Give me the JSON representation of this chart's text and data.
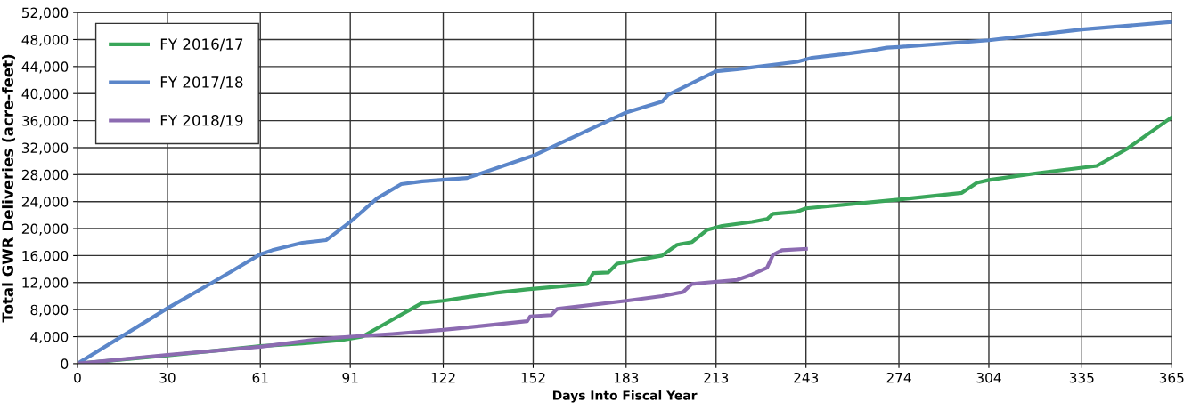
{
  "chart_data": {
    "type": "line",
    "xlabel": "Days Into Fiscal Year",
    "ylabel": "Total GWR Deliveries (acre-feet)",
    "xlim": [
      0,
      365
    ],
    "xticks": [
      0,
      30,
      61,
      91,
      122,
      152,
      183,
      213,
      243,
      274,
      304,
      335,
      365
    ],
    "ylim": [
      0,
      52000
    ],
    "yticks": [
      {
        "value": 0,
        "label": "0"
      },
      {
        "value": 4000,
        "label": "4,000"
      },
      {
        "value": 8000,
        "label": "8,000"
      },
      {
        "value": 12000,
        "label": "12,000"
      },
      {
        "value": 16000,
        "label": "16,000"
      },
      {
        "value": 20000,
        "label": "20,000"
      },
      {
        "value": 24000,
        "label": "24,000"
      },
      {
        "value": 28000,
        "label": "28,000"
      },
      {
        "value": 32000,
        "label": "32,000"
      },
      {
        "value": 36000,
        "label": "36,000"
      },
      {
        "value": 40000,
        "label": "40,000"
      },
      {
        "value": 44000,
        "label": "44,000"
      },
      {
        "value": 48000,
        "label": "48,000"
      },
      {
        "value": 52000,
        "label": "52,000"
      }
    ],
    "grid": true,
    "legend": "top left",
    "marker": "none",
    "line_style": "solid",
    "series": [
      {
        "name": "FY 2016/17",
        "color": "#3aa65a",
        "x": [
          0,
          30,
          61,
          75,
          88,
          95,
          105,
          111,
          115,
          122,
          140,
          150,
          170,
          172,
          177,
          180,
          185,
          195,
          200,
          205,
          210,
          215,
          225,
          230,
          232,
          240,
          243,
          274,
          295,
          300,
          304,
          320,
          340,
          350,
          365
        ],
        "values": [
          0,
          1200,
          2600,
          3000,
          3500,
          4000,
          6500,
          8000,
          9000,
          9300,
          10500,
          11000,
          11800,
          13400,
          13500,
          14800,
          15200,
          16000,
          17600,
          18000,
          19800,
          20400,
          21000,
          21400,
          22200,
          22500,
          23000,
          24300,
          25300,
          26800,
          27200,
          28200,
          29300,
          31800,
          36500
        ]
      },
      {
        "name": "FY 2017/18",
        "color": "#5b86c9",
        "x": [
          0,
          30,
          45,
          61,
          65,
          75,
          83,
          91,
          100,
          108,
          115,
          130,
          140,
          152,
          170,
          183,
          195,
          197,
          213,
          220,
          240,
          245,
          255,
          265,
          270,
          274,
          304,
          335,
          365
        ],
        "values": [
          0,
          8200,
          12000,
          16200,
          16800,
          17900,
          18300,
          21000,
          24500,
          26600,
          27000,
          27500,
          29000,
          30800,
          34500,
          37200,
          38800,
          39800,
          43300,
          43600,
          44700,
          45300,
          45800,
          46400,
          46800,
          46900,
          47900,
          49500,
          50600
        ]
      },
      {
        "name": "FY 2018/19",
        "color": "#8c6bb1",
        "x": [
          0,
          30,
          61,
          80,
          91,
          105,
          122,
          150,
          151,
          158,
          160,
          183,
          195,
          202,
          205,
          210,
          220,
          225,
          230,
          232,
          235,
          243
        ],
        "values": [
          0,
          1300,
          2500,
          3600,
          4000,
          4400,
          5000,
          6300,
          7000,
          7200,
          8100,
          9300,
          10000,
          10600,
          11800,
          12000,
          12400,
          13200,
          14200,
          16100,
          16800,
          17000
        ]
      }
    ]
  }
}
